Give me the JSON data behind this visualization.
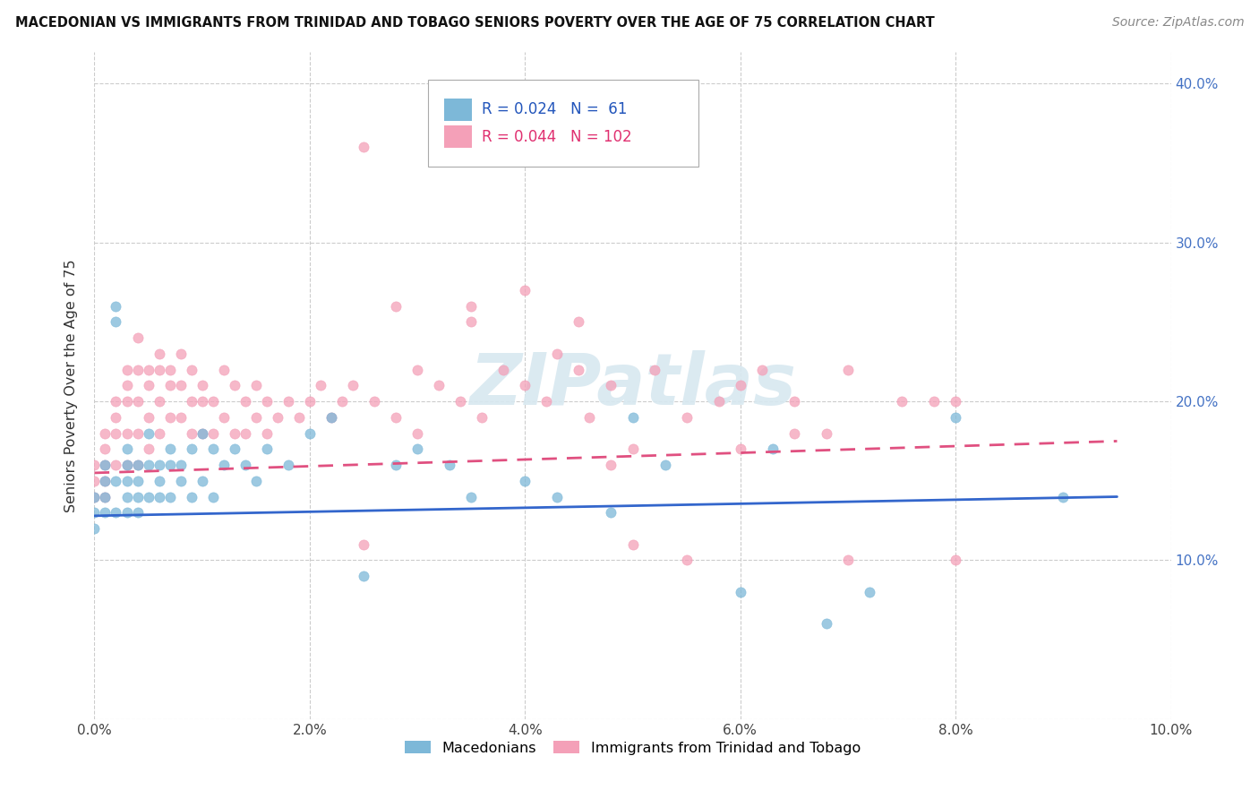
{
  "title": "MACEDONIAN VS IMMIGRANTS FROM TRINIDAD AND TOBAGO SENIORS POVERTY OVER THE AGE OF 75 CORRELATION CHART",
  "source": "Source: ZipAtlas.com",
  "ylabel": "Seniors Poverty Over the Age of 75",
  "xlim": [
    0.0,
    0.1
  ],
  "ylim": [
    0.0,
    0.42
  ],
  "xticks": [
    0.0,
    0.02,
    0.04,
    0.06,
    0.08,
    0.1
  ],
  "xtick_labels": [
    "0.0%",
    "2.0%",
    "4.0%",
    "6.0%",
    "8.0%",
    "10.0%"
  ],
  "right_yticks": [
    0.1,
    0.2,
    0.3,
    0.4
  ],
  "right_ytick_labels": [
    "10.0%",
    "20.0%",
    "30.0%",
    "40.0%"
  ],
  "macedonian_R": 0.024,
  "macedonian_N": 61,
  "trinidad_R": 0.044,
  "trinidad_N": 102,
  "blue_color": "#7db8d8",
  "pink_color": "#f4a0b8",
  "blue_line_color": "#3366cc",
  "pink_line_color": "#e05080",
  "watermark": "ZIPatlas",
  "blue_trend_x0": 0.0,
  "blue_trend_y0": 0.128,
  "blue_trend_x1": 0.095,
  "blue_trend_y1": 0.14,
  "pink_trend_x0": 0.0,
  "pink_trend_y0": 0.155,
  "pink_trend_x1": 0.095,
  "pink_trend_y1": 0.175,
  "mac_x": [
    0.0,
    0.0,
    0.0,
    0.001,
    0.001,
    0.001,
    0.001,
    0.002,
    0.002,
    0.002,
    0.002,
    0.003,
    0.003,
    0.003,
    0.003,
    0.003,
    0.004,
    0.004,
    0.004,
    0.004,
    0.005,
    0.005,
    0.005,
    0.006,
    0.006,
    0.006,
    0.007,
    0.007,
    0.007,
    0.008,
    0.008,
    0.009,
    0.009,
    0.01,
    0.01,
    0.011,
    0.011,
    0.012,
    0.013,
    0.014,
    0.015,
    0.016,
    0.018,
    0.02,
    0.022,
    0.025,
    0.028,
    0.03,
    0.033,
    0.035,
    0.04,
    0.043,
    0.048,
    0.053,
    0.06,
    0.063,
    0.068,
    0.072,
    0.05,
    0.08,
    0.09
  ],
  "mac_y": [
    0.14,
    0.13,
    0.12,
    0.16,
    0.15,
    0.14,
    0.13,
    0.25,
    0.26,
    0.15,
    0.13,
    0.17,
    0.16,
    0.15,
    0.14,
    0.13,
    0.16,
    0.15,
    0.14,
    0.13,
    0.18,
    0.16,
    0.14,
    0.16,
    0.15,
    0.14,
    0.17,
    0.16,
    0.14,
    0.16,
    0.15,
    0.17,
    0.14,
    0.18,
    0.15,
    0.17,
    0.14,
    0.16,
    0.17,
    0.16,
    0.15,
    0.17,
    0.16,
    0.18,
    0.19,
    0.09,
    0.16,
    0.17,
    0.16,
    0.14,
    0.15,
    0.14,
    0.13,
    0.16,
    0.08,
    0.17,
    0.06,
    0.08,
    0.19,
    0.19,
    0.14
  ],
  "tri_x": [
    0.0,
    0.0,
    0.0,
    0.001,
    0.001,
    0.001,
    0.001,
    0.001,
    0.002,
    0.002,
    0.002,
    0.002,
    0.003,
    0.003,
    0.003,
    0.003,
    0.003,
    0.004,
    0.004,
    0.004,
    0.004,
    0.004,
    0.005,
    0.005,
    0.005,
    0.005,
    0.006,
    0.006,
    0.006,
    0.006,
    0.007,
    0.007,
    0.007,
    0.008,
    0.008,
    0.008,
    0.009,
    0.009,
    0.009,
    0.01,
    0.01,
    0.01,
    0.011,
    0.011,
    0.012,
    0.012,
    0.013,
    0.013,
    0.014,
    0.014,
    0.015,
    0.015,
    0.016,
    0.016,
    0.017,
    0.018,
    0.019,
    0.02,
    0.021,
    0.022,
    0.023,
    0.024,
    0.025,
    0.026,
    0.028,
    0.03,
    0.03,
    0.032,
    0.034,
    0.035,
    0.036,
    0.038,
    0.04,
    0.042,
    0.043,
    0.045,
    0.046,
    0.048,
    0.05,
    0.052,
    0.055,
    0.058,
    0.06,
    0.062,
    0.065,
    0.068,
    0.07,
    0.075,
    0.078,
    0.08,
    0.025,
    0.028,
    0.035,
    0.04,
    0.045,
    0.048,
    0.06,
    0.065,
    0.05,
    0.055,
    0.07,
    0.08
  ],
  "tri_y": [
    0.16,
    0.15,
    0.14,
    0.18,
    0.17,
    0.16,
    0.15,
    0.14,
    0.2,
    0.19,
    0.18,
    0.16,
    0.22,
    0.21,
    0.2,
    0.18,
    0.16,
    0.24,
    0.22,
    0.2,
    0.18,
    0.16,
    0.22,
    0.21,
    0.19,
    0.17,
    0.23,
    0.22,
    0.2,
    0.18,
    0.22,
    0.21,
    0.19,
    0.23,
    0.21,
    0.19,
    0.22,
    0.2,
    0.18,
    0.21,
    0.2,
    0.18,
    0.2,
    0.18,
    0.22,
    0.19,
    0.21,
    0.18,
    0.2,
    0.18,
    0.21,
    0.19,
    0.2,
    0.18,
    0.19,
    0.2,
    0.19,
    0.2,
    0.21,
    0.19,
    0.2,
    0.21,
    0.11,
    0.2,
    0.19,
    0.22,
    0.18,
    0.21,
    0.2,
    0.25,
    0.19,
    0.22,
    0.21,
    0.2,
    0.23,
    0.22,
    0.19,
    0.21,
    0.17,
    0.22,
    0.19,
    0.2,
    0.21,
    0.22,
    0.2,
    0.18,
    0.22,
    0.2,
    0.2,
    0.2,
    0.36,
    0.26,
    0.26,
    0.27,
    0.25,
    0.16,
    0.17,
    0.18,
    0.11,
    0.1,
    0.1,
    0.1
  ]
}
